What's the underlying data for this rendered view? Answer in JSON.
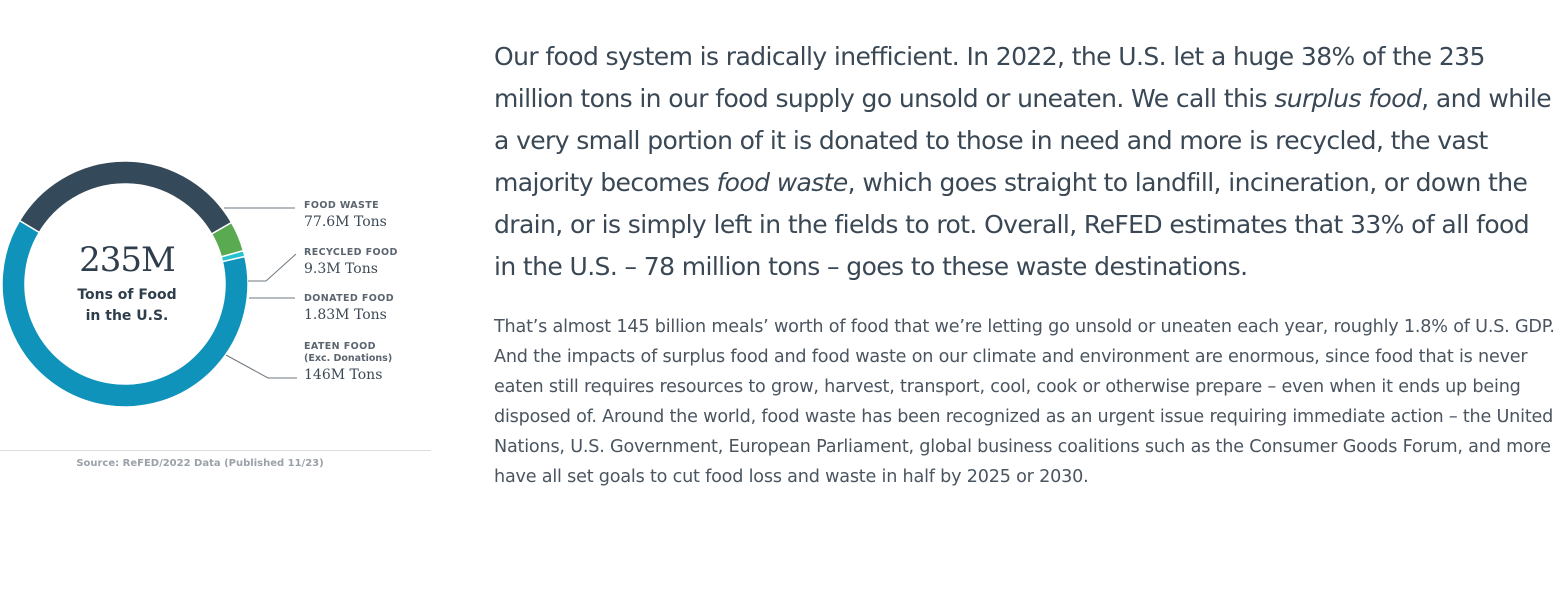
{
  "chart_data": {
    "type": "pie",
    "variant": "donut",
    "total_label": "235M",
    "total_sublabel_line1": "Tons of Food",
    "total_sublabel_line2": "in the U.S.",
    "unit": "M Tons",
    "slices": [
      {
        "key": "food_waste",
        "name": "FOOD WASTE",
        "note": "",
        "value": 77.6,
        "display": "77.6M Tons",
        "color": "#34495a"
      },
      {
        "key": "recycled_food",
        "name": "RECYCLED FOOD",
        "note": "",
        "value": 9.3,
        "display": "9.3M Tons",
        "color": "#5aaa52"
      },
      {
        "key": "donated_food",
        "name": "DONATED FOOD",
        "note": "",
        "value": 1.83,
        "display": "1.83M Tons",
        "color": "#27c2cf"
      },
      {
        "key": "eaten_food",
        "name": "EATEN FOOD",
        "note": "(Exc. Donations)",
        "value": 146,
        "display": "146M Tons",
        "color": "#0f93bb"
      }
    ],
    "legend_position": "right",
    "source": "Source: ReFED/2022 Data (Published 11/23)"
  },
  "text": {
    "lead_1": "Our food system is radically inefficient. In 2022, the U.S. let a huge 38% of the 235 million tons in our food supply go unsold or uneaten. We call this ",
    "lead_em_1": "surplus food",
    "lead_2": ", and while a very small portion of it is donated to those in need and more is recycled, the vast majority becomes ",
    "lead_em_2": "food waste",
    "lead_3": ", which goes straight to landfill, incineration, or down the drain, or is simply left in the fields to rot. Overall, ReFED estimates that 33% of all food in the U.S. – 78 million tons – goes to these waste destinations.",
    "body": "That’s almost 145 billion meals’ worth of food that we’re letting go unsold or uneaten each year, roughly 1.8% of U.S. GDP. And the impacts of surplus food and food waste on our climate and environment are enormous, since food that is never eaten still requires resources to grow, harvest, transport, cool, cook or otherwise prepare – even when it ends up being disposed of. Around the world, food waste has been recognized as an urgent issue requiring immediate action – the United Nations, U.S. Government, European Parliament, global business coalitions such as the Consumer Goods Forum, and more have all set goals to cut food loss and waste in half by 2025 or 2030."
  }
}
